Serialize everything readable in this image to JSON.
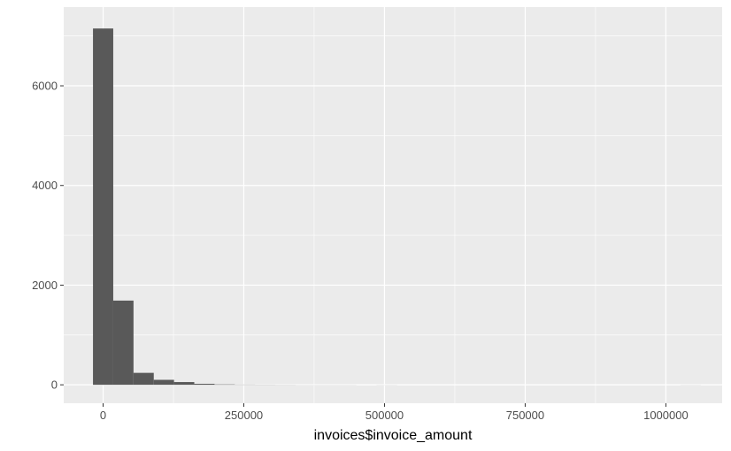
{
  "chart_data": {
    "type": "bar",
    "subtype": "histogram",
    "title": "",
    "xlabel": "invoices$invoice_amount",
    "ylabel": "",
    "xlim": [
      -70000,
      1100000
    ],
    "ylim": [
      -370,
      7580
    ],
    "x_ticks": [
      0,
      250000,
      500000,
      750000,
      1000000
    ],
    "x_tick_labels": [
      "0",
      "250000",
      "500000",
      "750000",
      "1000000"
    ],
    "y_ticks": [
      0,
      2000,
      4000,
      6000
    ],
    "y_tick_labels": [
      "0",
      "2000",
      "4000",
      "6000"
    ],
    "grid": true,
    "legend": "none",
    "bin_width": 36000,
    "bins": [
      {
        "x0": -18000,
        "x1": 18000,
        "count": 7150
      },
      {
        "x0": 18000,
        "x1": 54000,
        "count": 1690
      },
      {
        "x0": 54000,
        "x1": 90000,
        "count": 240
      },
      {
        "x0": 90000,
        "x1": 126000,
        "count": 100
      },
      {
        "x0": 126000,
        "x1": 162000,
        "count": 55
      },
      {
        "x0": 162000,
        "x1": 198000,
        "count": 20
      },
      {
        "x0": 198000,
        "x1": 234000,
        "count": 8
      },
      {
        "x0": 234000,
        "x1": 270000,
        "count": 4
      },
      {
        "x0": 270000,
        "x1": 306000,
        "count": 3
      },
      {
        "x0": 306000,
        "x1": 342000,
        "count": 2
      },
      {
        "x0": 342000,
        "x1": 378000,
        "count": 1
      },
      {
        "x0": 378000,
        "x1": 414000,
        "count": 1
      },
      {
        "x0": 414000,
        "x1": 450000,
        "count": 1
      },
      {
        "x0": 450000,
        "x1": 486000,
        "count": 0
      },
      {
        "x0": 486000,
        "x1": 522000,
        "count": 1
      },
      {
        "x0": 522000,
        "x1": 558000,
        "count": 0
      },
      {
        "x0": 558000,
        "x1": 594000,
        "count": 0
      },
      {
        "x0": 594000,
        "x1": 630000,
        "count": 0
      },
      {
        "x0": 630000,
        "x1": 666000,
        "count": 0
      },
      {
        "x0": 666000,
        "x1": 702000,
        "count": 0
      },
      {
        "x0": 702000,
        "x1": 738000,
        "count": 0
      },
      {
        "x0": 738000,
        "x1": 774000,
        "count": 0
      },
      {
        "x0": 774000,
        "x1": 810000,
        "count": 0
      },
      {
        "x0": 810000,
        "x1": 846000,
        "count": 0
      },
      {
        "x0": 846000,
        "x1": 882000,
        "count": 0
      },
      {
        "x0": 882000,
        "x1": 918000,
        "count": 0
      },
      {
        "x0": 918000,
        "x1": 954000,
        "count": 0
      },
      {
        "x0": 954000,
        "x1": 990000,
        "count": 0
      },
      {
        "x0": 990000,
        "x1": 1026000,
        "count": 0
      },
      {
        "x0": 1026000,
        "x1": 1062000,
        "count": 1
      }
    ],
    "colors": {
      "panel_background": "#ebebeb",
      "grid_major": "#ffffff",
      "bar_fill": "#595959",
      "tick_text": "#4d4d4d",
      "axis_title": "#000000"
    }
  }
}
